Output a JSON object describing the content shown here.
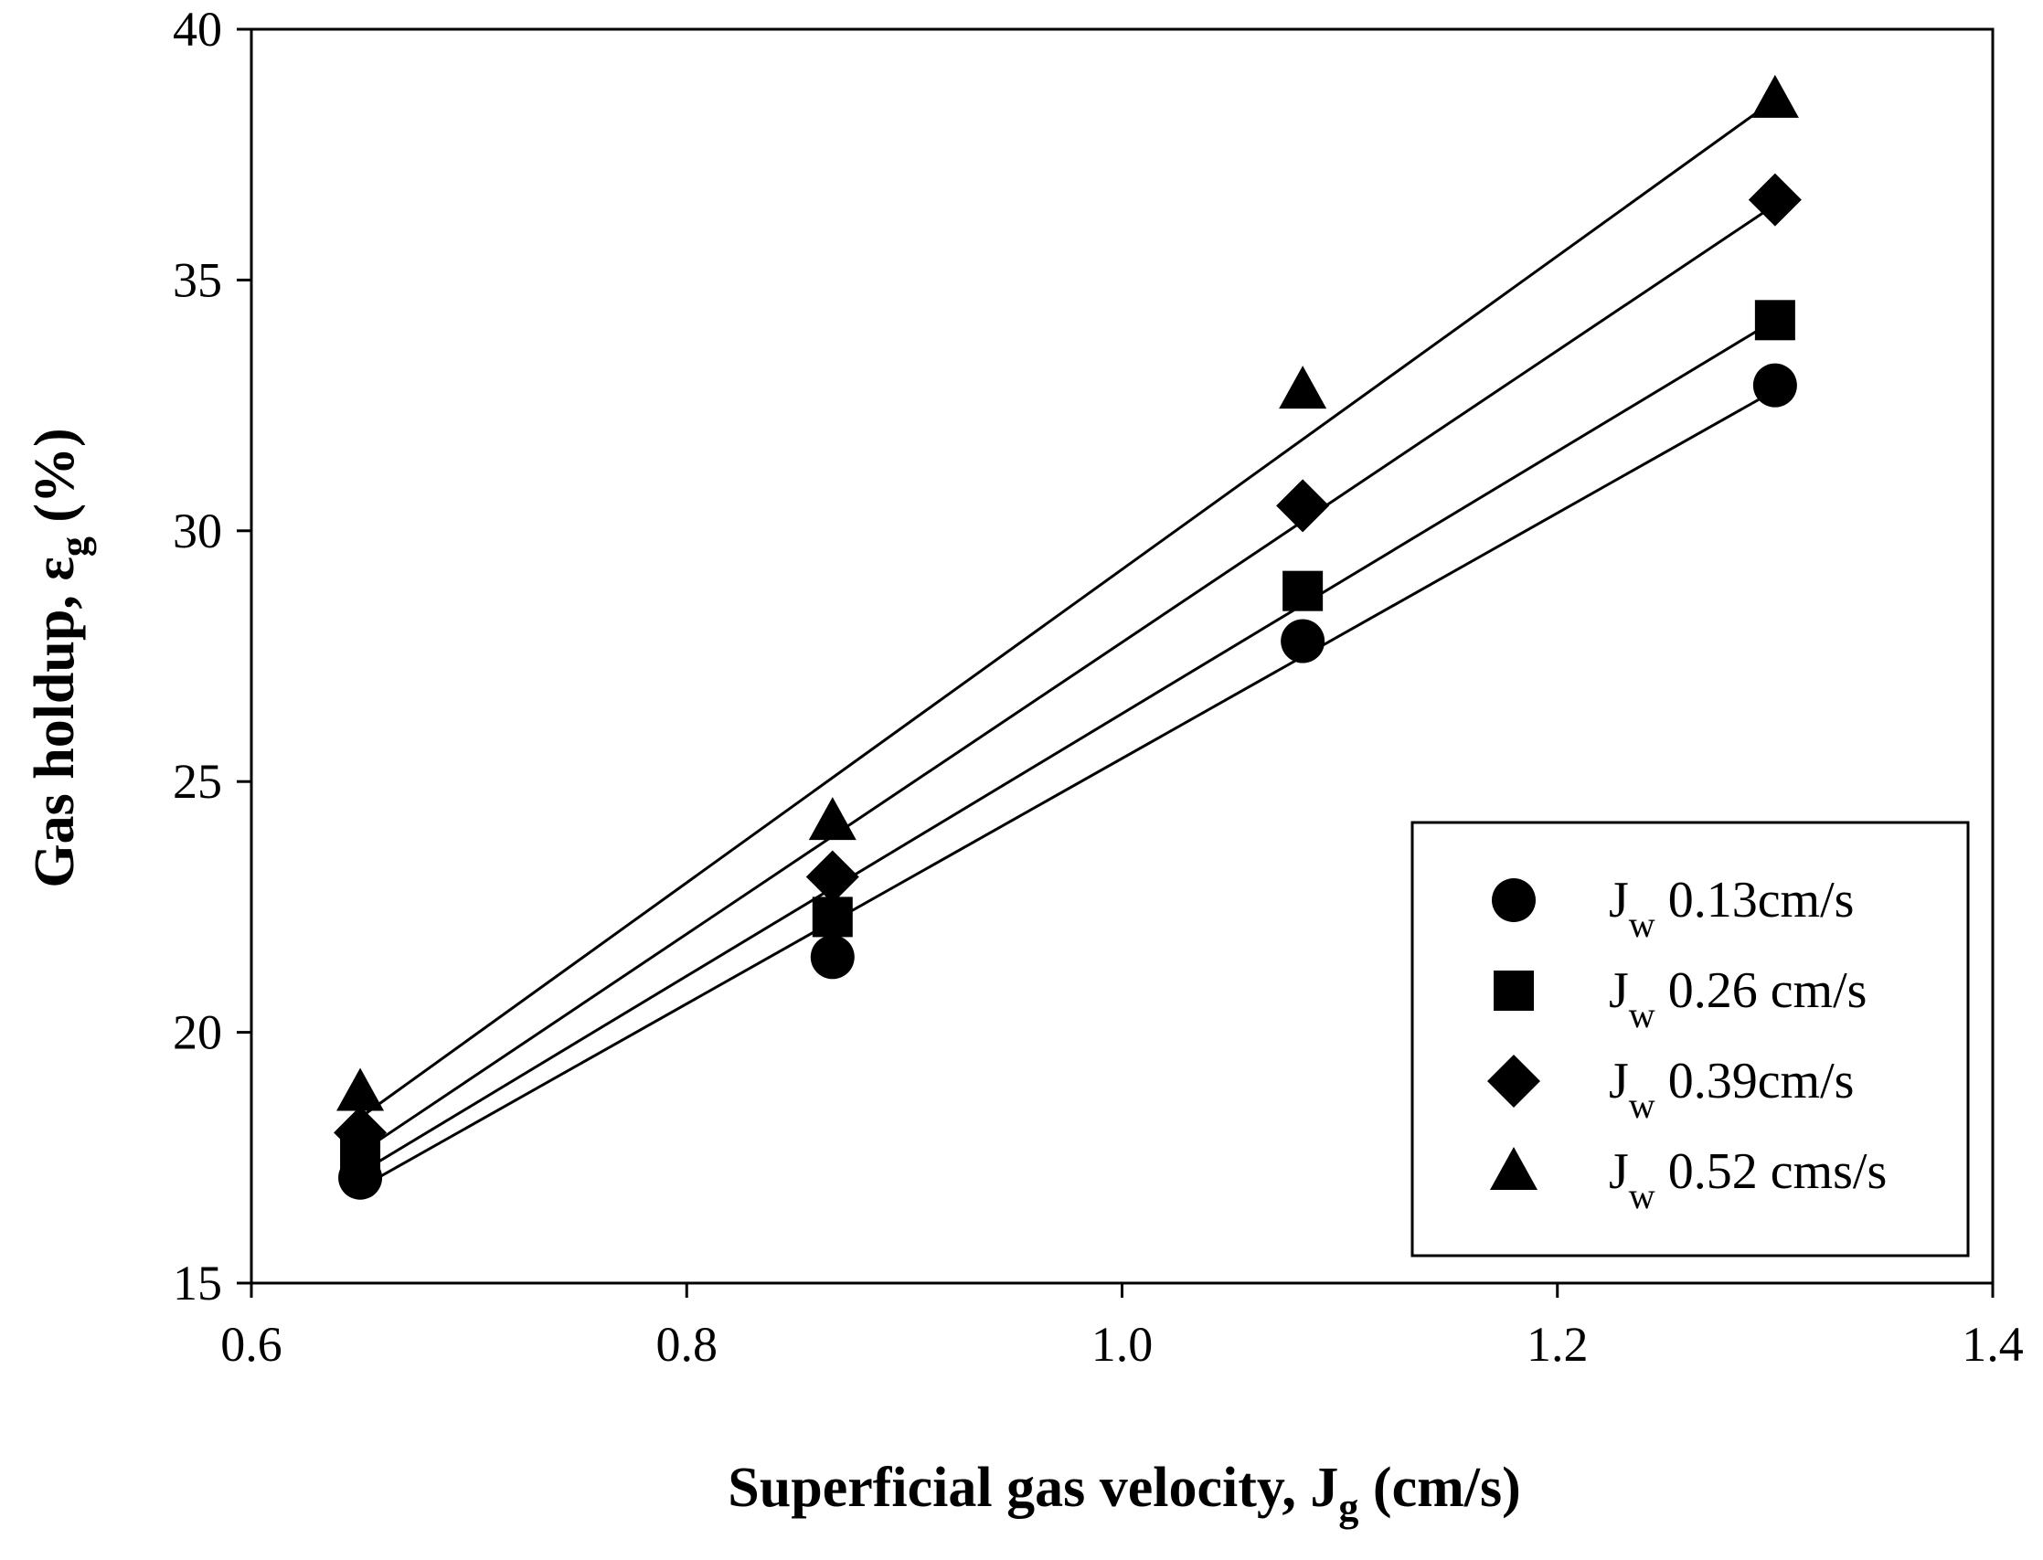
{
  "chart_data": {
    "type": "scatter",
    "title": "",
    "xlabel": {
      "main": "Superficial gas velocity, J",
      "sub": "g",
      "tail": " (cm/s)"
    },
    "ylabel": {
      "main": "Gas holdup, ε",
      "sub": "g",
      "tail": " (%)"
    },
    "xlim": [
      0.6,
      1.4
    ],
    "ylim": [
      15,
      40
    ],
    "xticks": [
      "0.6",
      "0.8",
      "1.0",
      "1.2",
      "1.4"
    ],
    "yticks": [
      "15",
      "20",
      "25",
      "30",
      "35",
      "40"
    ],
    "grid": false,
    "legend_position": "bottom-right",
    "series": [
      {
        "name": "J_w 0.13cm/s",
        "legend_prefix": "J",
        "legend_sub": "w",
        "legend_value": " 0.13cm/s",
        "marker": "circle",
        "x": [
          0.65,
          0.867,
          1.083,
          1.3
        ],
        "y": [
          17.1,
          21.5,
          27.8,
          32.9
        ],
        "fit": [
          16.9,
          32.8
        ]
      },
      {
        "name": "J_w 0.26 cm/s",
        "legend_prefix": "J",
        "legend_sub": "w",
        "legend_value": " 0.26 cm/s",
        "marker": "square",
        "x": [
          0.65,
          0.867,
          1.083,
          1.3
        ],
        "y": [
          17.5,
          22.3,
          28.8,
          34.2
        ],
        "fit": [
          17.2,
          34.2
        ]
      },
      {
        "name": "J_w 0.39cm/s",
        "legend_prefix": "J",
        "legend_sub": "w",
        "legend_value": " 0.39cm/s",
        "marker": "diamond",
        "x": [
          0.65,
          0.867,
          1.083,
          1.3
        ],
        "y": [
          18.0,
          23.1,
          30.5,
          36.6
        ],
        "fit": [
          17.6,
          36.5
        ]
      },
      {
        "name": "J_w 0.52 cms/s",
        "legend_prefix": "J",
        "legend_sub": "w",
        "legend_value": " 0.52 cms/s",
        "marker": "triangle",
        "x": [
          0.65,
          0.867,
          1.083,
          1.3
        ],
        "y": [
          18.8,
          24.2,
          32.8,
          38.6
        ],
        "fit": [
          18.3,
          38.6
        ]
      }
    ]
  }
}
